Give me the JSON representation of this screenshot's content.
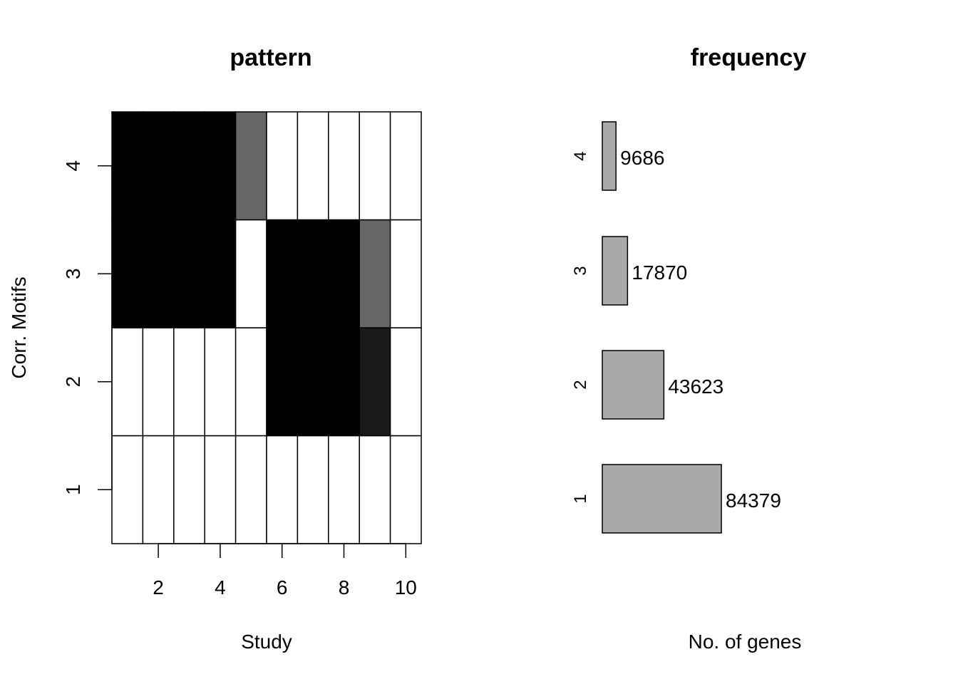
{
  "chart_data": [
    {
      "type": "heatmap",
      "title": "pattern",
      "xlabel": "Study",
      "ylabel": "Corr. Motifs",
      "x_ticks": [
        "2",
        "4",
        "6",
        "8",
        "10"
      ],
      "y_ticks": [
        "1",
        "2",
        "3",
        "4"
      ],
      "xlim": [
        0.5,
        10.5
      ],
      "ylim": [
        0.5,
        4.5
      ],
      "studies": [
        1,
        2,
        3,
        4,
        5,
        6,
        7,
        8,
        9,
        10
      ],
      "motifs": [
        1,
        2,
        3,
        4
      ],
      "values": [
        [
          0,
          0,
          0,
          0,
          0,
          0,
          0,
          0,
          0,
          0
        ],
        [
          0,
          0,
          0,
          0,
          0,
          1,
          1,
          1,
          0.9,
          0
        ],
        [
          1,
          1,
          1,
          1,
          0,
          1,
          1,
          1,
          0.6,
          0
        ],
        [
          1,
          1,
          1,
          1,
          0.6,
          0,
          0,
          0,
          0,
          0
        ]
      ],
      "color_scale": {
        "low": "#ffffff",
        "high": "#000000"
      },
      "grid": true
    },
    {
      "type": "bar",
      "orientation": "horizontal",
      "title": "frequency",
      "xlabel": "No. of genes",
      "categories": [
        "1",
        "2",
        "3",
        "4"
      ],
      "values": [
        84379,
        43623,
        17870,
        9686
      ],
      "data_labels": [
        "84379",
        "43623",
        "17870",
        "9686"
      ],
      "bar_color": "#a9a9a9",
      "xlim": [
        0,
        184379
      ]
    }
  ]
}
